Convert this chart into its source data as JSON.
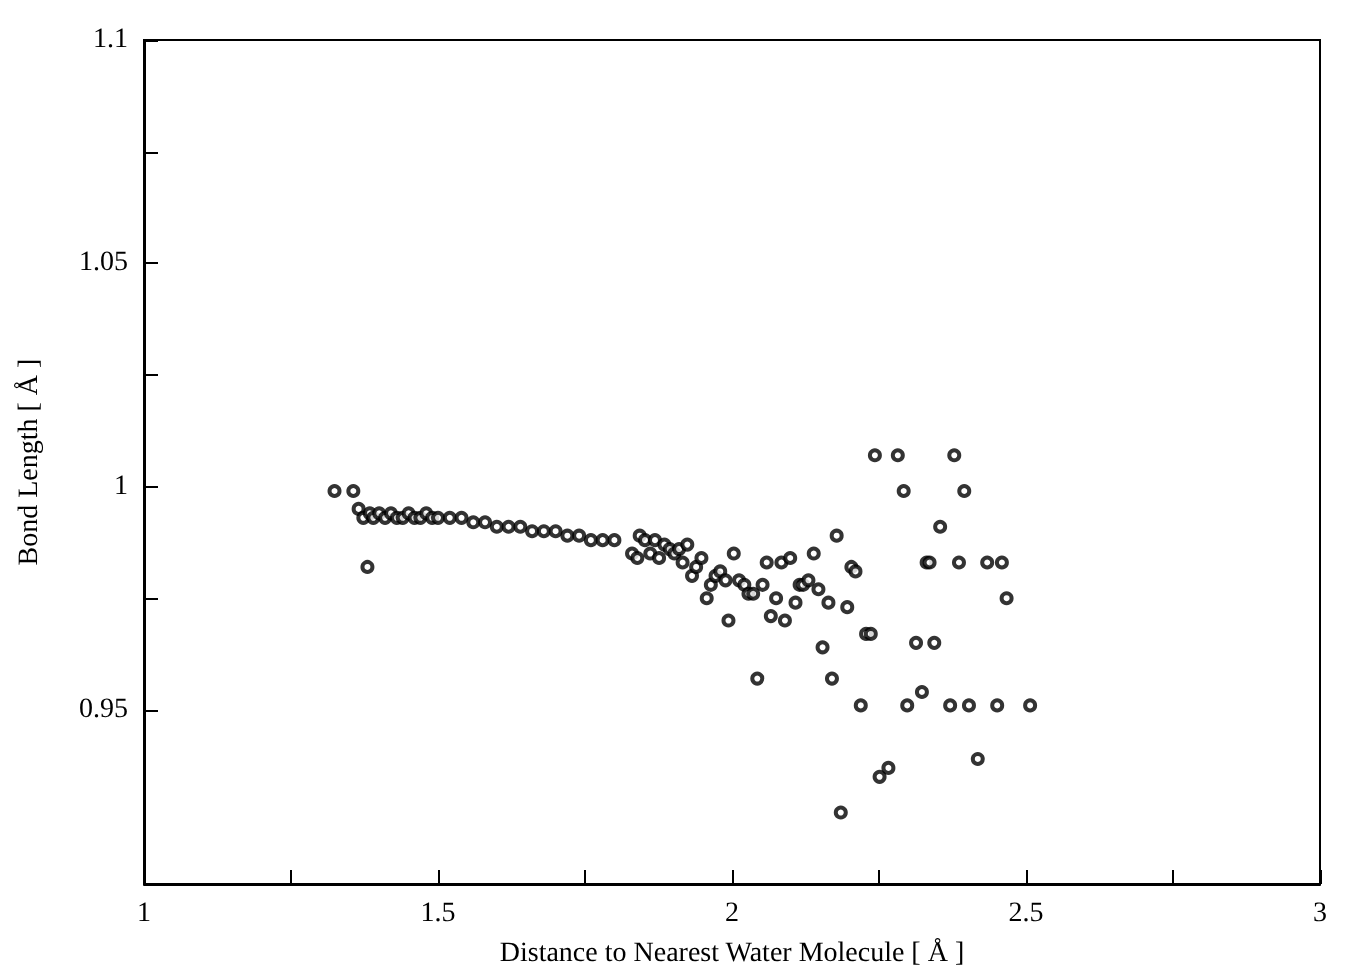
{
  "chart_data": {
    "type": "scatter",
    "xlabel": "Distance to Nearest Water Molecule [ Å ]",
    "ylabel": "Bond Length [ Å ]",
    "xlim": [
      1,
      3
    ],
    "xticks": [
      1,
      {
        "value": 1.25,
        "label": null
      },
      1.5,
      {
        "value": 1.75,
        "label": null
      },
      2,
      {
        "value": 2.25,
        "label": null
      },
      2.5,
      {
        "value": 2.75,
        "label": null
      },
      3
    ],
    "ylim": [
      0.911,
      1.1
    ],
    "yticks": [
      0.95,
      {
        "value": 0.975,
        "label": null
      },
      1,
      {
        "value": 1.025,
        "label": null
      },
      1.05,
      {
        "value": 1.075,
        "label": null
      },
      1.1
    ],
    "marker": "circle",
    "series": [
      {
        "color": "#000000",
        "x": [
          1.324,
          1.356,
          1.365,
          1.373,
          1.38,
          1.384,
          1.39,
          1.4,
          1.41,
          1.42,
          1.43,
          1.44,
          1.45,
          1.46,
          1.47,
          1.48,
          1.49,
          1.5,
          1.52,
          1.54,
          1.56,
          1.58,
          1.6,
          1.62,
          1.64,
          1.66,
          1.68,
          1.7,
          1.72,
          1.74,
          1.76,
          1.78,
          1.8,
          1.83,
          1.839,
          1.843,
          1.852,
          1.861,
          1.869,
          1.876,
          1.885,
          1.894,
          1.902,
          1.91,
          1.916,
          1.924,
          1.932,
          1.939,
          1.948,
          1.957,
          1.964,
          1.972,
          1.98,
          1.989,
          1.994,
          2.003,
          2.012,
          2.021,
          2.028,
          2.036,
          2.043,
          2.052,
          2.059,
          2.066,
          2.075,
          2.084,
          2.09,
          2.099,
          2.108,
          2.115,
          2.121,
          2.13,
          2.139,
          2.147,
          2.154,
          2.164,
          2.17,
          2.178,
          2.185,
          2.196,
          2.203,
          2.21,
          2.219,
          2.228,
          2.236,
          2.243,
          2.251,
          2.266,
          2.282,
          2.292,
          2.298,
          2.313,
          2.323,
          2.331,
          2.336,
          2.344,
          2.354,
          2.371,
          2.378,
          2.386,
          2.395,
          2.403,
          2.418,
          2.434,
          2.451,
          2.459,
          2.467,
          2.507
        ],
        "values": [
          0.999,
          0.999,
          0.995,
          0.993,
          0.982,
          0.994,
          0.993,
          0.994,
          0.993,
          0.994,
          0.993,
          0.993,
          0.994,
          0.993,
          0.993,
          0.994,
          0.993,
          0.993,
          0.993,
          0.993,
          0.992,
          0.992,
          0.991,
          0.991,
          0.991,
          0.99,
          0.99,
          0.99,
          0.989,
          0.989,
          0.988,
          0.988,
          0.988,
          0.985,
          0.984,
          0.989,
          0.988,
          0.985,
          0.988,
          0.984,
          0.987,
          0.986,
          0.985,
          0.986,
          0.983,
          0.987,
          0.98,
          0.982,
          0.984,
          0.975,
          0.978,
          0.98,
          0.981,
          0.979,
          0.97,
          0.985,
          0.979,
          0.978,
          0.976,
          0.976,
          0.957,
          0.978,
          0.983,
          0.971,
          0.975,
          0.983,
          0.97,
          0.984,
          0.974,
          0.978,
          0.978,
          0.979,
          0.985,
          0.977,
          0.964,
          0.974,
          0.957,
          0.989,
          0.927,
          0.973,
          0.982,
          0.981,
          0.951,
          0.967,
          0.967,
          1.007,
          0.935,
          0.937,
          1.007,
          0.999,
          0.951,
          0.965,
          0.954,
          0.983,
          0.983,
          0.965,
          0.991,
          0.951,
          1.007,
          0.983,
          0.999,
          0.951,
          0.939,
          0.983,
          0.951,
          0.983,
          0.975,
          0.951
        ]
      }
    ]
  }
}
